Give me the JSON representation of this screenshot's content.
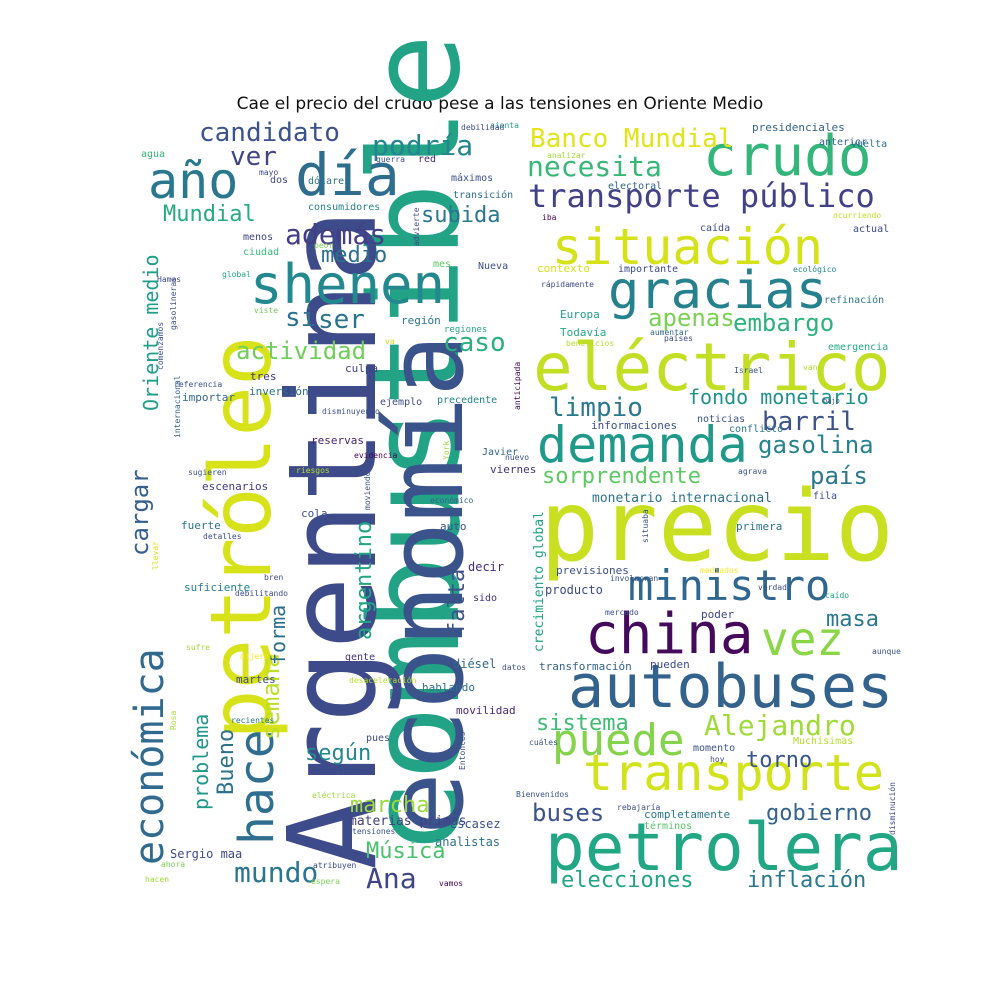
{
  "chart_data": {
    "type": "wordcloud",
    "title": "Cae el precio del crudo pese a las tensiones en Oriente Medio",
    "words": [
      {
        "text": "combustible",
        "color": "#22a386"
      },
      {
        "text": "Argentina",
        "color": "#3e4b8a"
      },
      {
        "text": "economía",
        "color": "#3a538b"
      },
      {
        "text": "petróleo",
        "color": "#d8e219"
      },
      {
        "text": "precio",
        "color": "#c8e020"
      },
      {
        "text": "eléctrico",
        "color": "#c2df23"
      },
      {
        "text": "petrolera",
        "color": "#22a785"
      },
      {
        "text": "autobuses",
        "color": "#33628d"
      },
      {
        "text": "china",
        "color": "#450a5c"
      },
      {
        "text": "transporte",
        "color": "#d2e21b"
      },
      {
        "text": "crudo",
        "color": "#32b67a"
      },
      {
        "text": "situación",
        "color": "#d5e21a"
      },
      {
        "text": "shenen",
        "color": "#23898e"
      },
      {
        "text": "día",
        "color": "#2e6d8e"
      },
      {
        "text": "gracias",
        "color": "#26818e"
      },
      {
        "text": "demanda",
        "color": "#1f9a8a"
      },
      {
        "text": "ministro",
        "color": "#31678e"
      },
      {
        "text": "vez",
        "color": "#8bd646"
      },
      {
        "text": "puede",
        "color": "#84d44b"
      },
      {
        "text": "año",
        "color": "#2a788e"
      },
      {
        "text": "económica",
        "color": "#306a8e"
      },
      {
        "text": "hace",
        "color": "#2e6e8e"
      },
      {
        "text": "transporte público",
        "color": "#424086"
      },
      {
        "text": "Banco Mundial",
        "color": "#e2e418"
      },
      {
        "text": "Alejandro",
        "color": "#a0da39"
      },
      {
        "text": "actividad",
        "color": "#6ece58"
      },
      {
        "text": "necesita",
        "color": "#37b878"
      },
      {
        "text": "podría",
        "color": "#24868e"
      },
      {
        "text": "candidato",
        "color": "#3b528b"
      },
      {
        "text": "además",
        "color": "#433e85"
      },
      {
        "text": "ver",
        "color": "#414487"
      },
      {
        "text": "Mundial",
        "color": "#25ab82"
      },
      {
        "text": "medio",
        "color": "#2d708e"
      },
      {
        "text": "ser",
        "color": "#2c738e"
      },
      {
        "text": "si",
        "color": "#2c728e"
      },
      {
        "text": "caso",
        "color": "#2ab07f"
      },
      {
        "text": "subida",
        "color": "#2a768e"
      },
      {
        "text": "apenas",
        "color": "#7ad151"
      },
      {
        "text": "embargo",
        "color": "#2db27d"
      },
      {
        "text": "limpio",
        "color": "#2a788e"
      },
      {
        "text": "fondo monetario",
        "color": "#20928c"
      },
      {
        "text": "barril",
        "color": "#3b528b"
      },
      {
        "text": "gasolina",
        "color": "#26828e"
      },
      {
        "text": "sorprendente",
        "color": "#5ec962"
      },
      {
        "text": "país",
        "color": "#2a778e"
      },
      {
        "text": "Oriente medio",
        "color": "#1f9e89"
      },
      {
        "text": "cargar",
        "color": "#355f8d"
      },
      {
        "text": "semana",
        "color": "#bddf26"
      },
      {
        "text": "argentino",
        "color": "#21a685"
      },
      {
        "text": "falta",
        "color": "#3b528b"
      },
      {
        "text": "forma",
        "color": "#2d708e"
      },
      {
        "text": "masa",
        "color": "#2a788e"
      },
      {
        "text": "sistema",
        "color": "#3fbc73"
      },
      {
        "text": "torno",
        "color": "#39568c"
      },
      {
        "text": "según",
        "color": "#23898e"
      },
      {
        "text": "Bueno",
        "color": "#2c738e"
      },
      {
        "text": "problema",
        "color": "#1f988b"
      },
      {
        "text": "marcha",
        "color": "#9bd93c"
      },
      {
        "text": "buses",
        "color": "#3b528b"
      },
      {
        "text": "gobierno",
        "color": "#33638d"
      },
      {
        "text": "mundo",
        "color": "#2b758e"
      },
      {
        "text": "Música",
        "color": "#4ac16d"
      },
      {
        "text": "Ana",
        "color": "#404588"
      },
      {
        "text": "elecciones",
        "color": "#21a585"
      },
      {
        "text": "inflación",
        "color": "#2a778e"
      },
      {
        "text": "monetario internacional",
        "color": "#2c728e"
      },
      {
        "text": "crecimiento global",
        "color": "#1fa187"
      },
      {
        "text": "materias primas",
        "color": "#424086"
      },
      {
        "text": "Sergio maa",
        "color": "#3e4a89"
      },
      {
        "text": "escasez",
        "color": "#3b528b"
      },
      {
        "text": "analistas",
        "color": "#2c728e"
      },
      {
        "text": "movilidad",
        "color": "#482878"
      },
      {
        "text": "diésel",
        "color": "#31688e"
      },
      {
        "text": "transformación",
        "color": "#33638d"
      },
      {
        "text": "previsiones",
        "color": "#3b528b"
      },
      {
        "text": "decir",
        "color": "#472d7b"
      },
      {
        "text": "producto",
        "color": "#3e4989"
      },
      {
        "text": "Europa",
        "color": "#1fa088"
      },
      {
        "text": "Todavía",
        "color": "#25ab82"
      },
      {
        "text": "presidenciales",
        "color": "#33638d"
      },
      {
        "text": "informaciones",
        "color": "#3b528b"
      },
      {
        "text": "primera",
        "color": "#2d708e"
      },
      {
        "text": "completamente",
        "color": "#2a788e"
      },
      {
        "text": "términos",
        "color": "#54c568"
      },
      {
        "text": "Muchísimas",
        "color": "#b5de2b"
      },
      {
        "text": "momento",
        "color": "#3b528b"
      },
      {
        "text": "pueden",
        "color": "#3e4a89"
      },
      {
        "text": "poder",
        "color": "#3f4889"
      },
      {
        "text": "electoral",
        "color": "#33638d"
      },
      {
        "text": "transición",
        "color": "#2e6f8e"
      },
      {
        "text": "consumidores",
        "color": "#26828e"
      },
      {
        "text": "dólares",
        "color": "#2d718e"
      },
      {
        "text": "máximos",
        "color": "#3b518b"
      },
      {
        "text": "región",
        "color": "#2a788e"
      },
      {
        "text": "regiones",
        "color": "#22a785"
      },
      {
        "text": "precedente",
        "color": "#25848e"
      },
      {
        "text": "ejemplo",
        "color": "#3d4d8a"
      },
      {
        "text": "culpa",
        "color": "#404588"
      },
      {
        "text": "reservas",
        "color": "#482475"
      },
      {
        "text": "importar",
        "color": "#31688e"
      },
      {
        "text": "inversión",
        "color": "#2c728e"
      },
      {
        "text": "fuerte",
        "color": "#2c728e"
      },
      {
        "text": "suficiente",
        "color": "#26818e"
      },
      {
        "text": "escenarios",
        "color": "#443a83"
      },
      {
        "text": "martes",
        "color": "#3e4a89"
      },
      {
        "text": "hablando",
        "color": "#2d708e"
      },
      {
        "text": "gente",
        "color": "#46337e"
      },
      {
        "text": "auto",
        "color": "#3b528b"
      },
      {
        "text": "viernes",
        "color": "#46327e"
      },
      {
        "text": "Javier",
        "color": "#31678e"
      },
      {
        "text": "cola",
        "color": "#3a548c"
      },
      {
        "text": "pues",
        "color": "#3e4c8a"
      },
      {
        "text": "sido",
        "color": "#46327e"
      },
      {
        "text": "tres",
        "color": "#46327e"
      },
      {
        "text": "dos",
        "color": "#3f4889"
      },
      {
        "text": "red",
        "color": "#482878"
      },
      {
        "text": "agua",
        "color": "#35b779"
      },
      {
        "text": "menos",
        "color": "#414487"
      },
      {
        "text": "ciudad",
        "color": "#3aba76"
      },
      {
        "text": "mes",
        "color": "#5ec962"
      },
      {
        "text": "Nueva",
        "color": "#3b528b"
      },
      {
        "text": "contexto",
        "color": "#d8e219"
      },
      {
        "text": "importante",
        "color": "#3e4989"
      },
      {
        "text": "refinación",
        "color": "#2a788e"
      },
      {
        "text": "emergencia",
        "color": "#24aa83"
      },
      {
        "text": "noticias",
        "color": "#3b528b"
      },
      {
        "text": "conflicto",
        "color": "#2a788e"
      },
      {
        "text": "fila",
        "color": "#3e4c8a"
      },
      {
        "text": "actual",
        "color": "#3e4989"
      },
      {
        "text": "caída",
        "color": "#3e4c8a"
      },
      {
        "text": "anterior",
        "color": "#33638d"
      },
      {
        "text": "vuelta",
        "color": "#2c728e"
      },
      {
        "text": "sienta",
        "color": "#21a685"
      },
      {
        "text": "debilidad",
        "color": "#3e4c8a"
      },
      {
        "text": "guerra",
        "color": "#3b528b"
      },
      {
        "text": "analizar",
        "color": "#a5db36"
      },
      {
        "text": "iba",
        "color": "#440154"
      },
      {
        "text": "ocurriendo",
        "color": "#c2df23"
      },
      {
        "text": "ecológico",
        "color": "#26828e"
      },
      {
        "text": "rápidamente",
        "color": "#3e4c8a"
      },
      {
        "text": "aumentar",
        "color": "#31688e"
      },
      {
        "text": "beneficios",
        "color": "#b8de29"
      },
      {
        "text": "países",
        "color": "#3e4c8a"
      },
      {
        "text": "Israel",
        "color": "#3b528b"
      },
      {
        "text": "van",
        "color": "#addc30"
      },
      {
        "text": "va",
        "color": "#d2e21b"
      },
      {
        "text": "viste",
        "color": "#6ece58"
      },
      {
        "text": "global",
        "color": "#22a785"
      },
      {
        "text": "Hamas",
        "color": "#3e4c8a"
      },
      {
        "text": "mayo",
        "color": "#3e4c8a"
      },
      {
        "text": "advierte",
        "color": "#3e4c8a"
      },
      {
        "text": "peor",
        "color": "#7ad151"
      },
      {
        "text": "gasolineras",
        "color": "#3b528b"
      },
      {
        "text": "comenzamos",
        "color": "#3b528b"
      },
      {
        "text": "referencia",
        "color": "#3b528b"
      },
      {
        "text": "disminuyendo",
        "color": "#3b528b"
      },
      {
        "text": "anticipada",
        "color": "#440154"
      },
      {
        "text": "internacional",
        "color": "#33638d"
      },
      {
        "text": "sugieren",
        "color": "#3b528b"
      },
      {
        "text": "riesgos",
        "color": "#b5de2b"
      },
      {
        "text": "evidencia",
        "color": "#440154"
      },
      {
        "text": "moviendo",
        "color": "#3b528b"
      },
      {
        "text": "York",
        "color": "#a0da39"
      },
      {
        "text": "nuevo",
        "color": "#3b528b"
      },
      {
        "text": "económico",
        "color": "#33638d"
      },
      {
        "text": "detalles",
        "color": "#3e4c8a"
      },
      {
        "text": "llevar",
        "color": "#d8e219"
      },
      {
        "text": "bren",
        "color": "#3e4c8a"
      },
      {
        "text": "debilitando",
        "color": "#3e4c8a"
      },
      {
        "text": "sufre",
        "color": "#a5db36"
      },
      {
        "text": "dijeron",
        "color": "#fde725"
      },
      {
        "text": "desaceleración",
        "color": "#b5de2b"
      },
      {
        "text": "Rosa",
        "color": "#addc30"
      },
      {
        "text": "recientes",
        "color": "#2a788e"
      },
      {
        "text": "datos",
        "color": "#3b528b"
      },
      {
        "text": "cuáles",
        "color": "#3b528b"
      },
      {
        "text": "Entonces",
        "color": "#3b528b"
      },
      {
        "text": "Nieto",
        "color": "#3b528b"
      },
      {
        "text": "eléctrica",
        "color": "#a0da39"
      },
      {
        "text": "Bienvenidos",
        "color": "#3b528b"
      },
      {
        "text": "tensiones",
        "color": "#3b528b"
      },
      {
        "text": "atribuyen",
        "color": "#3e4c8a"
      },
      {
        "text": "espera",
        "color": "#7ad151"
      },
      {
        "text": "ahora",
        "color": "#7ad151"
      },
      {
        "text": "hacen",
        "color": "#a0da39"
      },
      {
        "text": "vamos",
        "color": "#440154"
      },
      {
        "text": "rebajaría",
        "color": "#3e4c8a"
      },
      {
        "text": "disminución",
        "color": "#3e4c8a"
      },
      {
        "text": "hoy",
        "color": "#3e4c8a"
      },
      {
        "text": "verdad",
        "color": "#3e4c8a"
      },
      {
        "text": "caído",
        "color": "#21a685"
      },
      {
        "text": "involucran",
        "color": "#3b528b"
      },
      {
        "text": "mediados",
        "color": "#fde725"
      },
      {
        "text": "situaba",
        "color": "#3b528b"
      },
      {
        "text": "mercado",
        "color": "#3b528b"
      },
      {
        "text": "aunque",
        "color": "#3b528b"
      },
      {
        "text": "agrava",
        "color": "#3b528b"
      },
      {
        "text": "bajo",
        "color": "#3e4c8a"
      },
      {
        "text": "principalmente",
        "color": "#3e4c8a"
      },
      {
        "text": "precio",
        "color": "#fde725"
      }
    ]
  }
}
